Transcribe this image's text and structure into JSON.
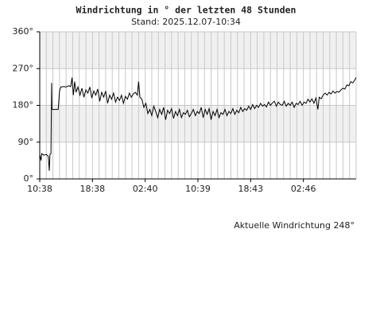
{
  "chart_data": {
    "type": "line",
    "title": "Windrichtung in ° der letzten 48 Stunden",
    "subtitle": "Stand: 2025.12.07-10:34",
    "annotation": "Aktuelle Windrichtung 248°",
    "x": [
      0,
      0.2,
      0.3,
      0.6,
      1.0,
      1.3,
      1.45,
      1.55,
      1.7,
      1.8,
      1.85,
      2.3,
      2.8,
      3.0,
      3.2,
      3.6,
      4.0,
      4.4,
      4.7,
      4.9,
      5.1,
      5.3,
      5.5,
      5.8,
      6.1,
      6.4,
      6.7,
      7.0,
      7.3,
      7.6,
      7.9,
      8.2,
      8.5,
      8.8,
      9.1,
      9.4,
      9.7,
      10.0,
      10.3,
      10.6,
      10.9,
      11.2,
      11.5,
      11.8,
      12.1,
      12.4,
      12.7,
      13.0,
      13.3,
      13.6,
      13.9,
      14.2,
      14.5,
      14.8,
      15.0,
      15.2,
      15.5,
      15.8,
      16.1,
      16.4,
      16.7,
      17.0,
      17.3,
      17.6,
      17.9,
      18.2,
      18.5,
      18.8,
      19.1,
      19.4,
      19.7,
      20.0,
      20.3,
      20.6,
      20.9,
      21.2,
      21.5,
      21.8,
      22.1,
      22.4,
      22.7,
      23.0,
      23.3,
      23.6,
      23.9,
      24.2,
      24.5,
      24.8,
      25.1,
      25.4,
      25.7,
      26.0,
      26.3,
      26.6,
      26.9,
      27.2,
      27.5,
      27.8,
      28.1,
      28.4,
      28.7,
      29.0,
      29.3,
      29.6,
      29.9,
      30.2,
      30.5,
      30.8,
      31.1,
      31.4,
      31.7,
      32.0,
      32.3,
      32.6,
      32.9,
      33.2,
      33.5,
      33.8,
      34.1,
      34.4,
      34.7,
      35.0,
      35.3,
      35.6,
      35.9,
      36.2,
      36.5,
      36.8,
      37.1,
      37.4,
      37.7,
      38.0,
      38.3,
      38.6,
      38.9,
      39.2,
      39.5,
      39.8,
      40.1,
      40.4,
      40.7,
      41.0,
      41.3,
      41.6,
      41.9,
      42.2,
      42.4,
      42.7,
      43.0,
      43.3,
      43.6,
      43.9,
      44.2,
      44.5,
      44.8,
      45.1,
      45.4,
      45.7,
      46.0,
      46.3,
      46.6,
      46.9,
      47.2,
      47.5,
      47.8,
      48.0
    ],
    "series": [
      {
        "color": "#000000",
        "values": [
          60,
          45,
          62,
          58,
          60,
          55,
          20,
          60,
          62,
          235,
          170,
          170,
          170,
          215,
          225,
          226,
          225,
          228,
          226,
          248,
          205,
          238,
          212,
          225,
          205,
          222,
          200,
          218,
          210,
          225,
          198,
          215,
          205,
          220,
          190,
          212,
          200,
          215,
          185,
          205,
          195,
          210,
          188,
          200,
          192,
          205,
          185,
          202,
          195,
          210,
          200,
          208,
          212,
          205,
          238,
          200,
          195,
          175,
          185,
          160,
          170,
          155,
          178,
          165,
          150,
          170,
          158,
          175,
          145,
          168,
          160,
          172,
          148,
          165,
          155,
          170,
          150,
          162,
          158,
          168,
          152,
          160,
          170,
          155,
          165,
          160,
          175,
          150,
          170,
          158,
          172,
          145,
          165,
          155,
          170,
          150,
          162,
          158,
          170,
          155,
          165,
          160,
          172,
          158,
          168,
          162,
          175,
          165,
          172,
          168,
          178,
          170,
          182,
          172,
          180,
          175,
          185,
          178,
          182,
          176,
          188,
          180,
          186,
          190,
          178,
          188,
          182,
          180,
          190,
          178,
          185,
          180,
          188,
          175,
          185,
          182,
          190,
          180,
          188,
          185,
          195,
          188,
          196,
          185,
          198,
          170,
          200,
          196,
          205,
          210,
          205,
          212,
          208,
          215,
          210,
          214,
          212,
          218,
          222,
          220,
          230,
          228,
          238,
          235,
          242,
          248
        ]
      }
    ],
    "xlim": [
      0,
      48
    ],
    "xticks": [
      {
        "value": 0,
        "label": "10:38"
      },
      {
        "value": 8,
        "label": "18:38"
      },
      {
        "value": 16,
        "label": "02:40"
      },
      {
        "value": 24,
        "label": "10:39"
      },
      {
        "value": 32,
        "label": "18:43"
      },
      {
        "value": 40,
        "label": "02:46"
      }
    ],
    "ylim": [
      0,
      360
    ],
    "yticks": [
      {
        "value": 0,
        "label": "0°"
      },
      {
        "value": 90,
        "label": "90°"
      },
      {
        "value": 180,
        "label": "180°"
      },
      {
        "value": 270,
        "label": "270°"
      },
      {
        "value": 360,
        "label": "360°"
      }
    ],
    "band_color": "#f0f0f0"
  }
}
